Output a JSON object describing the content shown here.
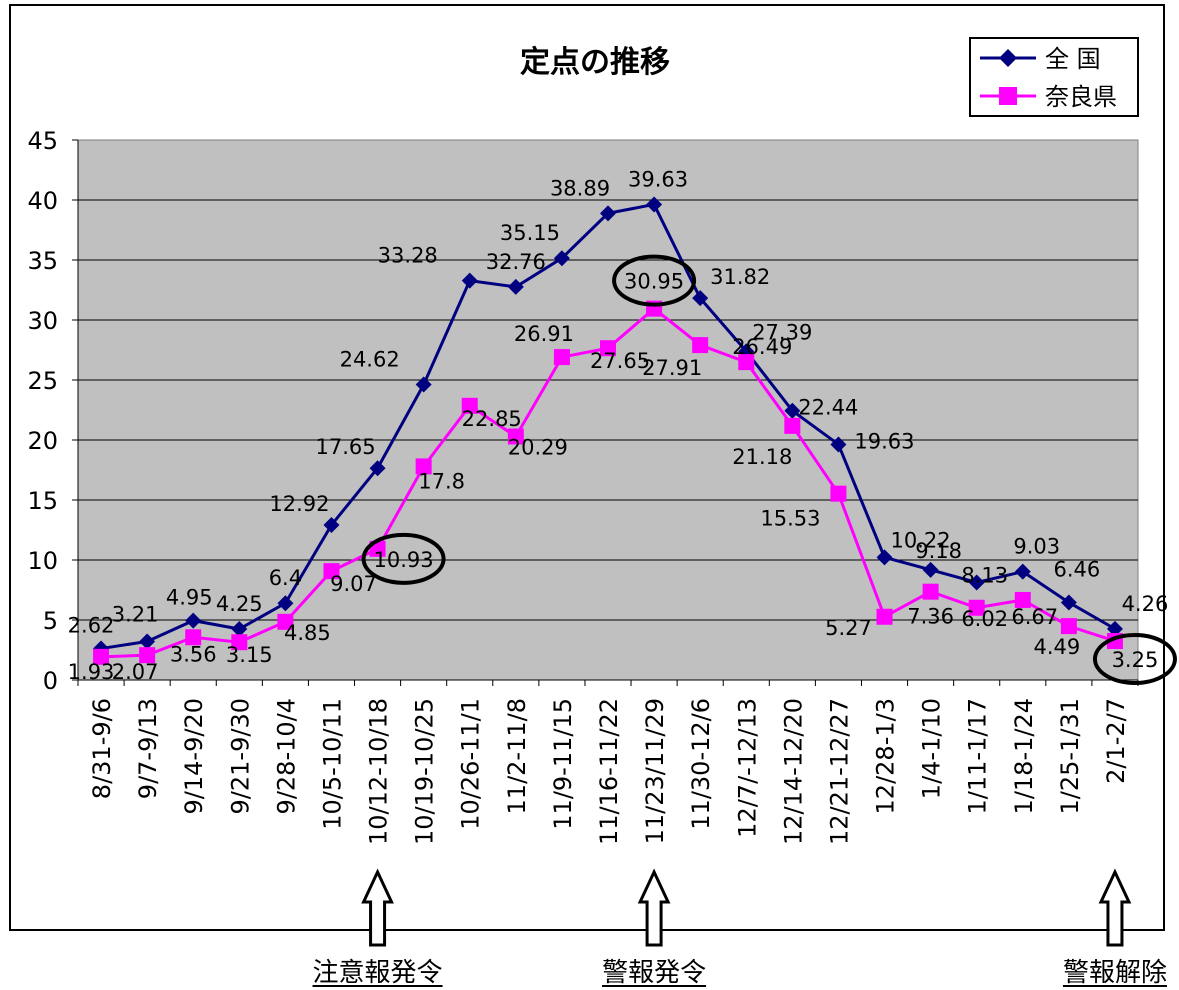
{
  "chart_data": {
    "type": "line",
    "title": "定点の推移",
    "categories": [
      "8/31-9/6",
      "9/7-9/13",
      "9/14-9/20",
      "9/21-9/30",
      "9/28-10/4",
      "10/5-10/11",
      "10/12-10/18",
      "10/19-10/25",
      "10/26-11/1",
      "11/2-11/8",
      "11/9-11/15",
      "11/16-11/22",
      "11/23/11/29",
      "11/30-12/6",
      "12/7/-12/13",
      "12/14-12/20",
      "12/21-12/27",
      "12/28-1/3",
      "1/4-1/10",
      "1/11-1/17",
      "1/18-1/24",
      "1/25-1/31",
      "2/1-2/7"
    ],
    "series": [
      {
        "name": "全 国",
        "color": "#000080",
        "marker": "diamond",
        "values": [
          2.62,
          3.21,
          4.95,
          4.25,
          6.4,
          12.92,
          17.65,
          24.62,
          33.28,
          32.76,
          35.15,
          38.89,
          39.63,
          31.82,
          27.39,
          22.44,
          19.63,
          10.22,
          9.18,
          8.13,
          9.03,
          6.46,
          4.26
        ],
        "labels": [
          "2.62",
          "3.21",
          "4.95",
          "4.25",
          "6.4",
          "12.92",
          "17.65",
          "24.62",
          "33.28",
          "32.76",
          "35.15",
          "38.89",
          "39.63",
          "31.82",
          "27.39",
          "22.44",
          "19.63",
          "10.22",
          "9.18",
          "8.13",
          "9.03",
          "6.46",
          "4.26"
        ]
      },
      {
        "name": "奈良県",
        "color": "#ff00ff",
        "marker": "square",
        "values": [
          1.93,
          2.07,
          3.56,
          3.15,
          4.85,
          9.07,
          10.93,
          17.8,
          22.85,
          20.29,
          26.91,
          27.65,
          30.95,
          27.91,
          26.49,
          21.18,
          15.53,
          5.27,
          7.36,
          6.02,
          6.67,
          4.49,
          3.25
        ],
        "labels": [
          "1.93",
          "2.07",
          "3.56",
          "3.15",
          "4.85",
          "9.07",
          "10.93",
          "17.8",
          "22.85",
          "20.29",
          "26.91",
          "27.65",
          "30.95",
          "27.91",
          "26.49",
          "21.18",
          "15.53",
          "5.27",
          "7.36",
          "6.02",
          "6.67",
          "4.49",
          "3.25"
        ]
      }
    ],
    "ylim": [
      0,
      45
    ],
    "yticks": [
      "0",
      "5",
      "10",
      "15",
      "20",
      "25",
      "30",
      "35",
      "40",
      "45"
    ],
    "grid": true,
    "legend": "top-right",
    "plot_background": "#c0c0c0",
    "circled_points": [
      {
        "series": 1,
        "index": 6
      },
      {
        "series": 1,
        "index": 12
      },
      {
        "series": 1,
        "index": 22
      }
    ],
    "annotations": [
      {
        "text": "注意報発令",
        "index": 6
      },
      {
        "text": "警報発令",
        "index": 12
      },
      {
        "text": "警報解除",
        "index": 22
      }
    ]
  }
}
